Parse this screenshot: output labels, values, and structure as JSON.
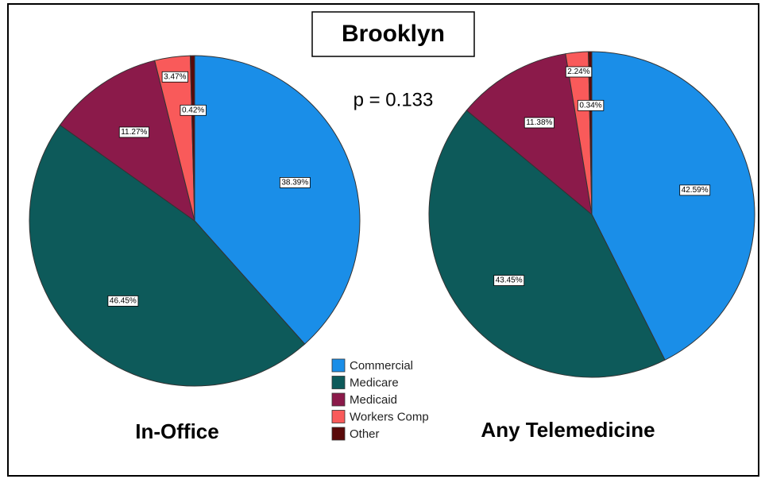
{
  "title": "Brooklyn",
  "annotation": "p = 0.133",
  "chart_data": [
    {
      "type": "pie",
      "title": "In-Office",
      "categories": [
        "Commercial",
        "Medicare",
        "Medicaid",
        "Workers Comp",
        "Other"
      ],
      "values": [
        38.39,
        46.45,
        11.27,
        3.47,
        0.42
      ],
      "value_labels": [
        "38.39%",
        "46.45%",
        "11.27%",
        "3.47%",
        "0.42%"
      ],
      "colors": [
        "#1a8ee8",
        "#0d5a5a",
        "#8b1a4a",
        "#f95a5a",
        "#5a0a0a"
      ]
    },
    {
      "type": "pie",
      "title": "Any Telemedicine",
      "categories": [
        "Commercial",
        "Medicare",
        "Medicaid",
        "Workers Comp",
        "Other"
      ],
      "values": [
        42.59,
        43.45,
        11.38,
        2.24,
        0.34
      ],
      "value_labels": [
        "42.59%",
        "43.45%",
        "11.38%",
        "2.24%",
        "0.34%"
      ],
      "colors": [
        "#1a8ee8",
        "#0d5a5a",
        "#8b1a4a",
        "#f95a5a",
        "#5a0a0a"
      ]
    }
  ]
}
